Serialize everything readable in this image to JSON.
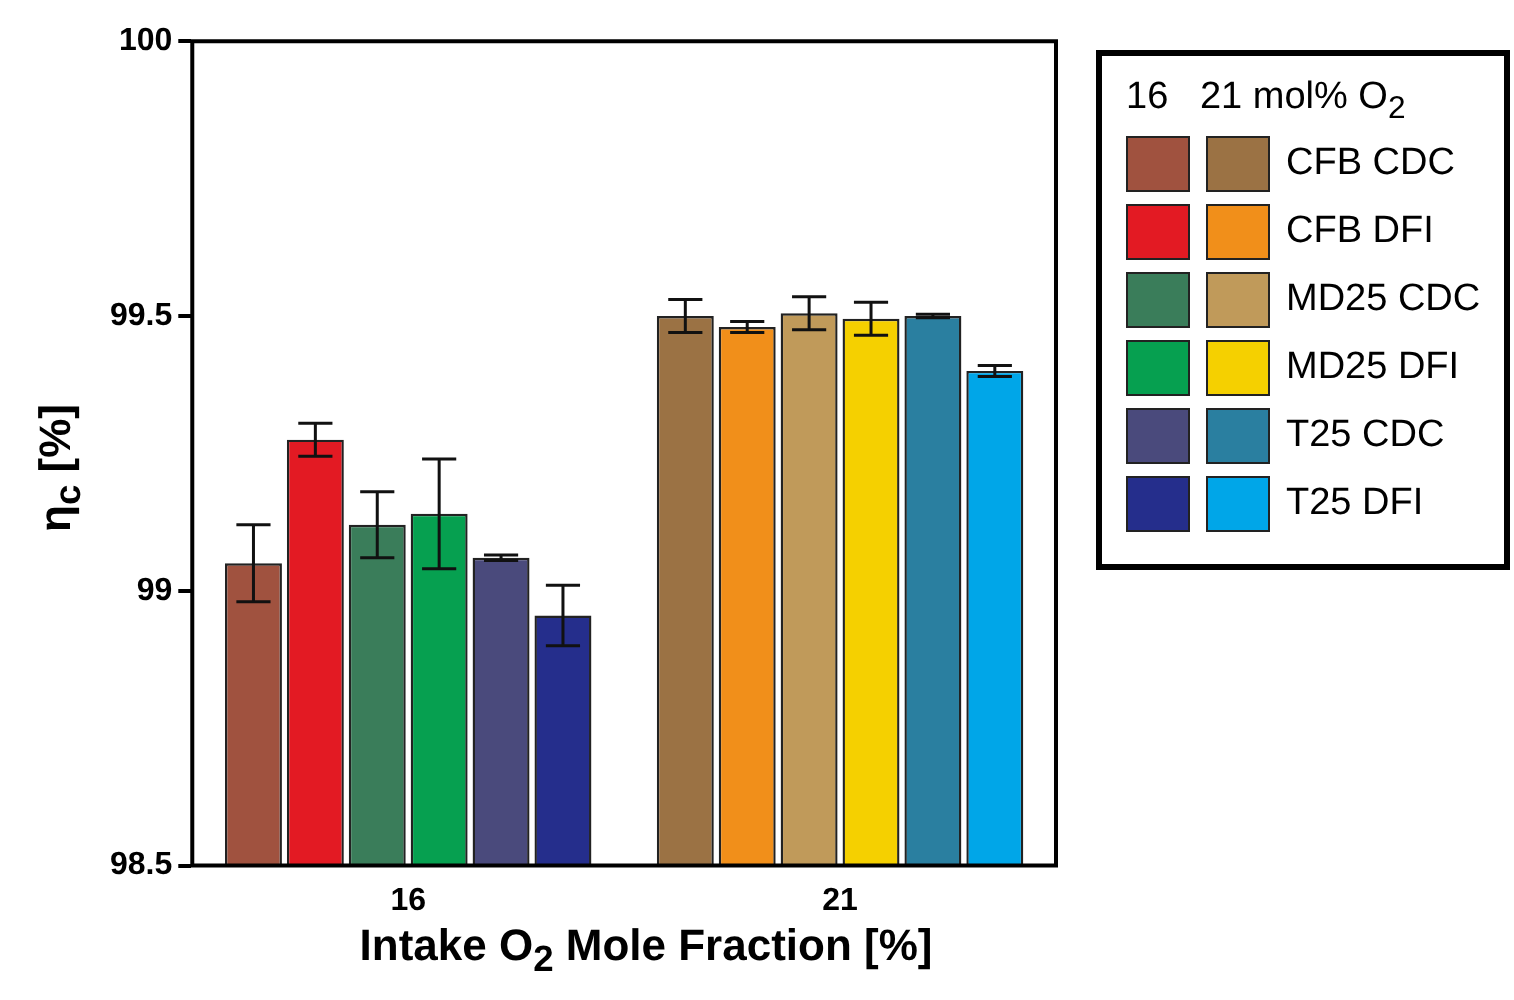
{
  "chart_data": {
    "type": "bar",
    "xlabel": "Intake O$_{2}$ Mole Fraction [%]",
    "ylabel": "η$_{c}$ [%]",
    "legend_title": "16   21 mol% O$_{2}$",
    "categories": [
      "16",
      "21"
    ],
    "ylim": [
      98.5,
      100
    ],
    "yticks": [
      98.5,
      99,
      99.5,
      100
    ],
    "grid": false,
    "legend": "right",
    "series": [
      {
        "name": "CFB CDC",
        "colors": [
          "#a0523f",
          "#9b7244"
        ],
        "values": [
          99.05,
          99.5
        ],
        "errors": [
          0.07,
          0.03
        ]
      },
      {
        "name": "CFB DFI",
        "colors": [
          "#e31a23",
          "#f18f1a"
        ],
        "values": [
          99.275,
          99.48
        ],
        "errors": [
          0.03,
          0.01
        ]
      },
      {
        "name": "MD25 CDC",
        "colors": [
          "#3a7d5a",
          "#c09a5a"
        ],
        "values": [
          99.12,
          99.505
        ],
        "errors": [
          0.06,
          0.03
        ]
      },
      {
        "name": "MD25 DFI",
        "colors": [
          "#06a050",
          "#f5d000"
        ],
        "values": [
          99.14,
          99.495
        ],
        "errors": [
          0.1,
          0.03
        ]
      },
      {
        "name": "T25 CDC",
        "colors": [
          "#4a4a7c",
          "#2a7fa0"
        ],
        "values": [
          99.06,
          99.5
        ],
        "errors": [
          0.005,
          0.003
        ]
      },
      {
        "name": "T25 DFI",
        "colors": [
          "#252e8c",
          "#00a6e8"
        ],
        "values": [
          98.955,
          99.4
        ],
        "errors": [
          0.055,
          0.01
        ]
      }
    ]
  }
}
